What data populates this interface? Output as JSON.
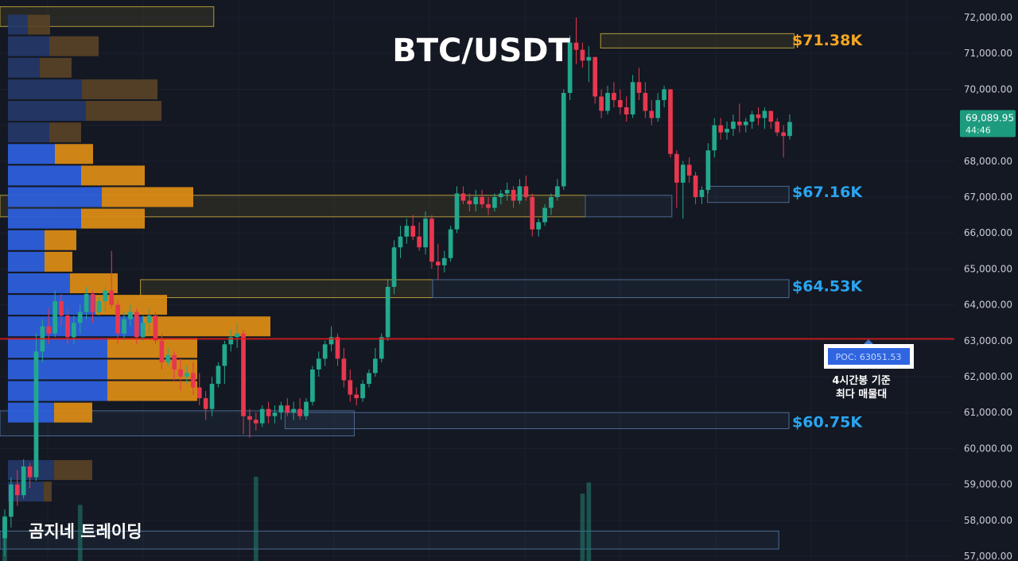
{
  "chart_data": {
    "type": "candlestick",
    "title": "BTC/USDT",
    "watermark": "곰지네 트레이딩",
    "ylim": [
      57000,
      72000
    ],
    "y_ticks": [
      "72,000.00",
      "71,000.00",
      "70,000.00",
      "69,000.00",
      "68,000.00",
      "67,000.00",
      "66,000.00",
      "65,000.00",
      "64,000.00",
      "63,000.00",
      "62,000.00",
      "61,000.00",
      "60,000.00",
      "59,000.00",
      "58,000.00",
      "57,000.00"
    ],
    "current_price": {
      "value": 69089.95,
      "label": "69,089.95",
      "countdown": "44:46"
    },
    "poc": {
      "value": 63051.53,
      "label": "POC: 63051.53",
      "note_line1": "4시간봉 기준",
      "note_line2": "최다 매물대"
    },
    "levels": [
      {
        "label": "$71.38K",
        "value": 71380,
        "color": "#f5a623"
      },
      {
        "label": "$67.16K",
        "value": 67160,
        "color": "#29a6f2"
      },
      {
        "label": "$64.53K",
        "value": 64530,
        "color": "#29a6f2"
      },
      {
        "label": "$60.75K",
        "value": 60750,
        "color": "#29a6f2"
      }
    ],
    "candles_ohlc": [
      [
        57500,
        58300,
        57000,
        58100
      ],
      [
        58100,
        59200,
        57800,
        59000
      ],
      [
        59000,
        59400,
        58400,
        58700
      ],
      [
        58700,
        59700,
        58600,
        59500
      ],
      [
        59500,
        59600,
        58900,
        59200
      ],
      [
        59200,
        63200,
        59100,
        62700
      ],
      [
        62700,
        63600,
        62400,
        63400
      ],
      [
        63400,
        63900,
        62900,
        63200
      ],
      [
        63200,
        64400,
        63100,
        64100
      ],
      [
        64100,
        64300,
        63400,
        63700
      ],
      [
        63700,
        63900,
        62900,
        63100
      ],
      [
        63100,
        63700,
        62900,
        63500
      ],
      [
        63500,
        64000,
        63200,
        63800
      ],
      [
        63800,
        64500,
        63600,
        64300
      ],
      [
        64300,
        64400,
        63500,
        63800
      ],
      [
        63800,
        64200,
        63700,
        64100
      ],
      [
        64100,
        64500,
        63800,
        64400
      ],
      [
        64400,
        65500,
        63900,
        64000
      ],
      [
        64000,
        64100,
        62900,
        63200
      ],
      [
        63200,
        63800,
        63000,
        63600
      ],
      [
        63600,
        64000,
        63400,
        63800
      ],
      [
        63800,
        63900,
        62900,
        63100
      ],
      [
        63100,
        63700,
        63000,
        63500
      ],
      [
        63500,
        63900,
        63200,
        63700
      ],
      [
        63700,
        63800,
        62900,
        63000
      ],
      [
        63000,
        63200,
        62200,
        62400
      ],
      [
        62400,
        62800,
        62300,
        62600
      ],
      [
        62600,
        62700,
        61900,
        62200
      ],
      [
        62200,
        62500,
        61600,
        62000
      ],
      [
        62000,
        62300,
        61800,
        62100
      ],
      [
        62100,
        62400,
        61500,
        61700
      ],
      [
        61700,
        62100,
        61200,
        61400
      ],
      [
        61400,
        61600,
        60800,
        61100
      ],
      [
        61100,
        62000,
        60900,
        61800
      ],
      [
        61800,
        62400,
        61700,
        62300
      ],
      [
        62300,
        63000,
        61800,
        62900
      ],
      [
        62900,
        63300,
        62700,
        63100
      ],
      [
        63100,
        63500,
        62800,
        63200
      ],
      [
        63200,
        63300,
        60400,
        60900
      ],
      [
        60900,
        61100,
        60300,
        60800
      ],
      [
        60800,
        61000,
        60500,
        60700
      ],
      [
        60700,
        61200,
        60600,
        61100
      ],
      [
        61100,
        61300,
        60700,
        60900
      ],
      [
        60900,
        61200,
        60700,
        61000
      ],
      [
        61000,
        61300,
        60800,
        61200
      ],
      [
        61200,
        61400,
        60900,
        61000
      ],
      [
        61000,
        61300,
        60800,
        61100
      ],
      [
        61100,
        61400,
        60800,
        60900
      ],
      [
        60900,
        61400,
        60800,
        61300
      ],
      [
        61300,
        62300,
        61200,
        62200
      ],
      [
        62200,
        62700,
        62000,
        62500
      ],
      [
        62500,
        63000,
        62300,
        62900
      ],
      [
        62900,
        63400,
        62700,
        63100
      ],
      [
        63100,
        63200,
        62300,
        62500
      ],
      [
        62500,
        62800,
        61700,
        61900
      ],
      [
        61900,
        62200,
        61300,
        61500
      ],
      [
        61500,
        61700,
        61200,
        61400
      ],
      [
        61400,
        61900,
        61300,
        61800
      ],
      [
        61800,
        62200,
        61700,
        62100
      ],
      [
        62100,
        62800,
        62000,
        62500
      ],
      [
        62500,
        63200,
        62400,
        63100
      ],
      [
        63100,
        64700,
        63000,
        64500
      ],
      [
        64500,
        65800,
        64300,
        65600
      ],
      [
        65600,
        66200,
        65300,
        65900
      ],
      [
        65900,
        66400,
        65700,
        66200
      ],
      [
        66200,
        66500,
        65800,
        65900
      ],
      [
        65900,
        66300,
        65500,
        65600
      ],
      [
        65600,
        66600,
        65400,
        66400
      ],
      [
        66400,
        66500,
        65000,
        65200
      ],
      [
        65200,
        65700,
        64700,
        65100
      ],
      [
        65100,
        65500,
        64900,
        65300
      ],
      [
        65300,
        66200,
        65200,
        66100
      ],
      [
        66100,
        67300,
        66000,
        67100
      ],
      [
        67100,
        67300,
        66800,
        66900
      ],
      [
        66900,
        67100,
        66600,
        66800
      ],
      [
        66800,
        67200,
        66600,
        67000
      ],
      [
        67000,
        67200,
        66700,
        66800
      ],
      [
        66800,
        67000,
        66500,
        66700
      ],
      [
        66700,
        67100,
        66600,
        67000
      ],
      [
        67000,
        67200,
        66800,
        67100
      ],
      [
        67100,
        67400,
        66900,
        67200
      ],
      [
        67200,
        67300,
        66700,
        66900
      ],
      [
        66900,
        67500,
        66800,
        67300
      ],
      [
        67300,
        67600,
        66900,
        67000
      ],
      [
        67000,
        67100,
        65900,
        66100
      ],
      [
        66100,
        66400,
        65900,
        66300
      ],
      [
        66300,
        66800,
        66200,
        66700
      ],
      [
        66700,
        67100,
        66500,
        67000
      ],
      [
        67000,
        67500,
        66900,
        67300
      ],
      [
        67300,
        70000,
        67200,
        69900
      ],
      [
        69900,
        71500,
        69700,
        71300
      ],
      [
        71300,
        72000,
        70700,
        71100
      ],
      [
        71100,
        71300,
        70600,
        70800
      ],
      [
        70800,
        71200,
        70200,
        70900
      ],
      [
        70900,
        70900,
        69600,
        69800
      ],
      [
        69800,
        70000,
        69200,
        69400
      ],
      [
        69400,
        70100,
        69300,
        69900
      ],
      [
        69900,
        70200,
        69500,
        69700
      ],
      [
        69700,
        70000,
        69300,
        69500
      ],
      [
        69500,
        69800,
        69100,
        69300
      ],
      [
        69300,
        70400,
        69200,
        70200
      ],
      [
        70200,
        70600,
        69700,
        69900
      ],
      [
        69900,
        70200,
        69200,
        69400
      ],
      [
        69400,
        69700,
        69000,
        69200
      ],
      [
        69200,
        69900,
        69100,
        69700
      ],
      [
        69700,
        70100,
        69500,
        70000
      ],
      [
        70000,
        70000,
        68100,
        68200
      ],
      [
        68200,
        68300,
        66700,
        67400
      ],
      [
        67400,
        68000,
        66400,
        67900
      ],
      [
        67900,
        68100,
        67400,
        67600
      ],
      [
        67600,
        67700,
        66800,
        67000
      ],
      [
        67000,
        67300,
        66800,
        67200
      ],
      [
        67200,
        68500,
        67100,
        68300
      ],
      [
        68300,
        69200,
        68100,
        69000
      ],
      [
        69000,
        69200,
        68600,
        68800
      ],
      [
        68800,
        69100,
        68600,
        68900
      ],
      [
        68900,
        69300,
        68700,
        69100
      ],
      [
        69100,
        69600,
        68800,
        69000
      ],
      [
        69000,
        69200,
        68800,
        69100
      ],
      [
        69100,
        69400,
        68900,
        69300
      ],
      [
        69300,
        69500,
        69000,
        69200
      ],
      [
        69200,
        69500,
        68900,
        69400
      ],
      [
        69400,
        69400,
        68900,
        69100
      ],
      [
        69100,
        69200,
        68700,
        68800
      ],
      [
        68800,
        69000,
        68100,
        68700
      ],
      [
        68700,
        69300,
        68600,
        69090
      ]
    ],
    "volume_profile": [
      {
        "price": 71800,
        "buy": 25,
        "sell": 28
      },
      {
        "price": 71200,
        "buy": 52,
        "sell": 62
      },
      {
        "price": 70600,
        "buy": 40,
        "sell": 40
      },
      {
        "price": 70000,
        "buy": 93,
        "sell": 95
      },
      {
        "price": 69400,
        "buy": 98,
        "sell": 95
      },
      {
        "price": 68800,
        "buy": 52,
        "sell": 40
      },
      {
        "price": 68200,
        "buy": 59,
        "sell": 48
      },
      {
        "price": 67600,
        "buy": 92,
        "sell": 80
      },
      {
        "price": 67000,
        "buy": 118,
        "sell": 115
      },
      {
        "price": 66400,
        "buy": 92,
        "sell": 80
      },
      {
        "price": 65800,
        "buy": 46,
        "sell": 40
      },
      {
        "price": 65200,
        "buy": 46,
        "sell": 35
      },
      {
        "price": 64600,
        "buy": 78,
        "sell": 60
      },
      {
        "price": 64000,
        "buy": 110,
        "sell": 90
      },
      {
        "price": 63400,
        "buy": 170,
        "sell": 160
      },
      {
        "price": 62800,
        "buy": 125,
        "sell": 113
      },
      {
        "price": 62200,
        "buy": 125,
        "sell": 113
      },
      {
        "price": 61600,
        "buy": 125,
        "sell": 113
      },
      {
        "price": 61000,
        "buy": 58,
        "sell": 48
      },
      {
        "price": 59400,
        "buy": 58,
        "sell": 48
      },
      {
        "price": 58800,
        "buy": 45,
        "sell": 10
      }
    ],
    "zones": [
      {
        "top": 71550,
        "bottom": 71150,
        "x0": 0.59,
        "x1": 0.78,
        "kind": "yellow"
      },
      {
        "top": 72300,
        "bottom": 71750,
        "x0": 0.0,
        "x1": 0.21,
        "kind": "yellow"
      },
      {
        "top": 67050,
        "bottom": 66450,
        "x0": 0.0,
        "x1": 0.575,
        "kind": "yellow"
      },
      {
        "top": 67050,
        "bottom": 66450,
        "x0": 0.575,
        "x1": 0.66,
        "kind": "blue"
      },
      {
        "top": 67300,
        "bottom": 66850,
        "x0": 0.695,
        "x1": 0.775,
        "kind": "blue"
      },
      {
        "top": 64700,
        "bottom": 64200,
        "x0": 0.138,
        "x1": 0.425,
        "kind": "yellow"
      },
      {
        "top": 64700,
        "bottom": 64200,
        "x0": 0.425,
        "x1": 0.775,
        "kind": "blue"
      },
      {
        "top": 61000,
        "bottom": 60550,
        "x0": 0.28,
        "x1": 0.775,
        "kind": "blue"
      },
      {
        "top": 61050,
        "bottom": 60350,
        "x0": 0.0,
        "x1": 0.348,
        "kind": "blue"
      },
      {
        "top": 57700,
        "bottom": 57200,
        "x0": 0.0,
        "x1": 0.765,
        "kind": "blue"
      }
    ],
    "volume_spikes": [
      {
        "candle": 40,
        "height": 0.15
      },
      {
        "candle": 92,
        "height": 0.12
      },
      {
        "candle": 93,
        "height": 0.14
      },
      {
        "candle": 12,
        "height": 0.1
      },
      {
        "candle": 0,
        "height": 0.08
      }
    ]
  }
}
